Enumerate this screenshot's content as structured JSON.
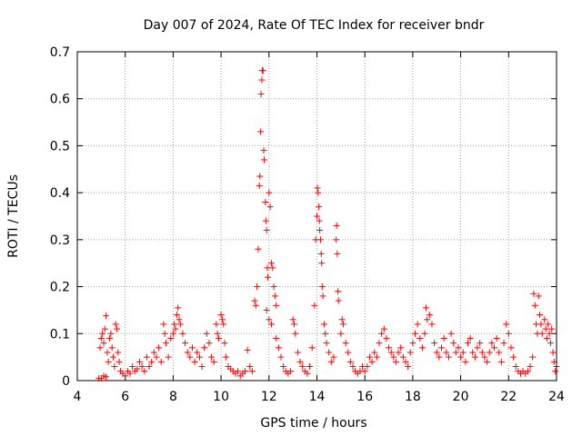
{
  "chart_data": {
    "type": "scatter",
    "title": "Day 007 of 2024, Rate Of TEC Index for receiver bndr",
    "xlabel": "GPS time / hours",
    "ylabel": "ROTI / TECUs",
    "xlim": [
      4,
      24
    ],
    "ylim": [
      0,
      0.7
    ],
    "grid": true,
    "marker": "plus",
    "color": "#ff0000",
    "x_ticks": [
      {
        "value": 4,
        "label": "4"
      },
      {
        "value": 6,
        "label": "6"
      },
      {
        "value": 8,
        "label": "8"
      },
      {
        "value": 10,
        "label": "10"
      },
      {
        "value": 12,
        "label": "12"
      },
      {
        "value": 14,
        "label": "14"
      },
      {
        "value": 16,
        "label": "16"
      },
      {
        "value": 18,
        "label": "18"
      },
      {
        "value": 20,
        "label": "20"
      },
      {
        "value": 22,
        "label": "22"
      },
      {
        "value": 24,
        "label": "24"
      }
    ],
    "y_ticks": [
      {
        "value": 0,
        "label": "0"
      },
      {
        "value": 0.1,
        "label": "0.1"
      },
      {
        "value": 0.2,
        "label": "0.2"
      },
      {
        "value": 0.3,
        "label": "0.3"
      },
      {
        "value": 0.4,
        "label": "0.4"
      },
      {
        "value": 0.5,
        "label": "0.5"
      },
      {
        "value": 0.6,
        "label": "0.6"
      },
      {
        "value": 0.7,
        "label": "0.7"
      }
    ],
    "series": [
      {
        "name": "ROTI",
        "points": [
          [
            4.9,
            0.005
          ],
          [
            4.95,
            0.07
          ],
          [
            5.0,
            0.09
          ],
          [
            5.05,
            0.1
          ],
          [
            5.1,
            0.08
          ],
          [
            5.15,
            0.11
          ],
          [
            5.2,
            0.138
          ],
          [
            5.25,
            0.06
          ],
          [
            5.3,
            0.04
          ],
          [
            5.35,
            0.09
          ],
          [
            5.4,
            0.1
          ],
          [
            5.45,
            0.07
          ],
          [
            5.5,
            0.05
          ],
          [
            5.55,
            0.03
          ],
          [
            5.6,
            0.12
          ],
          [
            5.65,
            0.11
          ],
          [
            5.7,
            0.06
          ],
          [
            5.75,
            0.04
          ],
          [
            5.8,
            0.02
          ],
          [
            5.9,
            0.015
          ],
          [
            5.0,
            0.005
          ],
          [
            5.1,
            0.01
          ],
          [
            5.2,
            0.008
          ],
          [
            6.0,
            0.01
          ],
          [
            6.1,
            0.02
          ],
          [
            6.2,
            0.015
          ],
          [
            6.3,
            0.03
          ],
          [
            6.4,
            0.02
          ],
          [
            6.5,
            0.025
          ],
          [
            6.6,
            0.04
          ],
          [
            6.7,
            0.03
          ],
          [
            6.8,
            0.02
          ],
          [
            6.9,
            0.05
          ],
          [
            7.0,
            0.03
          ],
          [
            7.1,
            0.04
          ],
          [
            7.2,
            0.06
          ],
          [
            7.3,
            0.05
          ],
          [
            7.4,
            0.07
          ],
          [
            7.5,
            0.04
          ],
          [
            7.6,
            0.12
          ],
          [
            7.65,
            0.1
          ],
          [
            7.7,
            0.08
          ],
          [
            7.8,
            0.05
          ],
          [
            7.9,
            0.09
          ],
          [
            8.0,
            0.1
          ],
          [
            8.05,
            0.12
          ],
          [
            8.1,
            0.11
          ],
          [
            8.15,
            0.14
          ],
          [
            8.2,
            0.155
          ],
          [
            8.25,
            0.13
          ],
          [
            8.3,
            0.12
          ],
          [
            8.4,
            0.1
          ],
          [
            8.5,
            0.08
          ],
          [
            8.6,
            0.06
          ],
          [
            8.7,
            0.05
          ],
          [
            8.8,
            0.07
          ],
          [
            8.9,
            0.04
          ],
          [
            9.0,
            0.06
          ],
          [
            9.1,
            0.05
          ],
          [
            9.2,
            0.03
          ],
          [
            9.3,
            0.07
          ],
          [
            9.4,
            0.1
          ],
          [
            9.5,
            0.08
          ],
          [
            9.6,
            0.05
          ],
          [
            9.7,
            0.04
          ],
          [
            9.8,
            0.12
          ],
          [
            9.85,
            0.1
          ],
          [
            9.9,
            0.09
          ],
          [
            10.0,
            0.14
          ],
          [
            10.05,
            0.13
          ],
          [
            10.1,
            0.12
          ],
          [
            10.15,
            0.08
          ],
          [
            10.2,
            0.05
          ],
          [
            10.3,
            0.03
          ],
          [
            10.4,
            0.025
          ],
          [
            10.5,
            0.02
          ],
          [
            10.6,
            0.015
          ],
          [
            10.7,
            0.02
          ],
          [
            10.8,
            0.01
          ],
          [
            10.9,
            0.015
          ],
          [
            11.0,
            0.02
          ],
          [
            11.1,
            0.065
          ],
          [
            11.2,
            0.03
          ],
          [
            11.3,
            0.02
          ],
          [
            11.4,
            0.17
          ],
          [
            11.45,
            0.16
          ],
          [
            11.5,
            0.2
          ],
          [
            11.55,
            0.28
          ],
          [
            11.6,
            0.415
          ],
          [
            11.62,
            0.435
          ],
          [
            11.65,
            0.53
          ],
          [
            11.67,
            0.61
          ],
          [
            11.7,
            0.64
          ],
          [
            11.72,
            0.66
          ],
          [
            11.75,
            0.66
          ],
          [
            11.78,
            0.49
          ],
          [
            11.8,
            0.47
          ],
          [
            11.85,
            0.38
          ],
          [
            11.87,
            0.34
          ],
          [
            11.9,
            0.32
          ],
          [
            11.93,
            0.24
          ],
          [
            11.95,
            0.22
          ],
          [
            12.0,
            0.4
          ],
          [
            12.05,
            0.37
          ],
          [
            12.1,
            0.25
          ],
          [
            12.15,
            0.24
          ],
          [
            12.2,
            0.2
          ],
          [
            12.25,
            0.18
          ],
          [
            12.3,
            0.16
          ],
          [
            11.9,
            0.15
          ],
          [
            12.0,
            0.13
          ],
          [
            12.1,
            0.12
          ],
          [
            12.3,
            0.09
          ],
          [
            12.4,
            0.07
          ],
          [
            12.5,
            0.05
          ],
          [
            12.6,
            0.03
          ],
          [
            12.7,
            0.02
          ],
          [
            12.8,
            0.015
          ],
          [
            12.9,
            0.02
          ],
          [
            13.0,
            0.13
          ],
          [
            13.05,
            0.12
          ],
          [
            13.1,
            0.1
          ],
          [
            13.2,
            0.06
          ],
          [
            13.3,
            0.04
          ],
          [
            13.4,
            0.03
          ],
          [
            13.5,
            0.02
          ],
          [
            13.6,
            0.015
          ],
          [
            13.7,
            0.03
          ],
          [
            13.8,
            0.07
          ],
          [
            13.9,
            0.16
          ],
          [
            13.95,
            0.3
          ],
          [
            14.0,
            0.35
          ],
          [
            14.02,
            0.41
          ],
          [
            14.05,
            0.4
          ],
          [
            14.08,
            0.37
          ],
          [
            14.1,
            0.34
          ],
          [
            14.12,
            0.32
          ],
          [
            14.15,
            0.3
          ],
          [
            14.18,
            0.27
          ],
          [
            14.2,
            0.25
          ],
          [
            14.22,
            0.2
          ],
          [
            14.25,
            0.18
          ],
          [
            14.3,
            0.12
          ],
          [
            14.35,
            0.1
          ],
          [
            14.4,
            0.08
          ],
          [
            14.5,
            0.06
          ],
          [
            14.6,
            0.04
          ],
          [
            14.7,
            0.05
          ],
          [
            14.8,
            0.3
          ],
          [
            14.82,
            0.33
          ],
          [
            14.85,
            0.27
          ],
          [
            14.88,
            0.19
          ],
          [
            14.9,
            0.17
          ],
          [
            15.0,
            0.1
          ],
          [
            15.05,
            0.13
          ],
          [
            15.1,
            0.12
          ],
          [
            15.2,
            0.08
          ],
          [
            15.3,
            0.06
          ],
          [
            15.4,
            0.04
          ],
          [
            15.5,
            0.03
          ],
          [
            15.6,
            0.02
          ],
          [
            15.7,
            0.015
          ],
          [
            15.8,
            0.02
          ],
          [
            15.9,
            0.03
          ],
          [
            16.0,
            0.02
          ],
          [
            16.1,
            0.03
          ],
          [
            16.2,
            0.05
          ],
          [
            16.3,
            0.04
          ],
          [
            16.4,
            0.06
          ],
          [
            16.5,
            0.05
          ],
          [
            16.6,
            0.08
          ],
          [
            16.7,
            0.1
          ],
          [
            16.8,
            0.11
          ],
          [
            16.9,
            0.09
          ],
          [
            17.0,
            0.07
          ],
          [
            17.1,
            0.06
          ],
          [
            17.2,
            0.05
          ],
          [
            17.3,
            0.04
          ],
          [
            17.4,
            0.06
          ],
          [
            17.5,
            0.07
          ],
          [
            17.6,
            0.05
          ],
          [
            17.7,
            0.04
          ],
          [
            17.8,
            0.03
          ],
          [
            17.9,
            0.06
          ],
          [
            18.0,
            0.08
          ],
          [
            18.1,
            0.1
          ],
          [
            18.2,
            0.12
          ],
          [
            18.3,
            0.09
          ],
          [
            18.4,
            0.07
          ],
          [
            18.5,
            0.1
          ],
          [
            18.55,
            0.155
          ],
          [
            18.6,
            0.13
          ],
          [
            18.7,
            0.14
          ],
          [
            18.8,
            0.12
          ],
          [
            18.9,
            0.08
          ],
          [
            19.0,
            0.06
          ],
          [
            19.1,
            0.05
          ],
          [
            19.2,
            0.07
          ],
          [
            19.3,
            0.09
          ],
          [
            19.4,
            0.06
          ],
          [
            19.5,
            0.05
          ],
          [
            19.6,
            0.1
          ],
          [
            19.7,
            0.08
          ],
          [
            19.8,
            0.06
          ],
          [
            19.9,
            0.07
          ],
          [
            20.0,
            0.05
          ],
          [
            20.1,
            0.06
          ],
          [
            20.2,
            0.04
          ],
          [
            20.3,
            0.08
          ],
          [
            20.4,
            0.09
          ],
          [
            20.5,
            0.06
          ],
          [
            20.6,
            0.05
          ],
          [
            20.7,
            0.07
          ],
          [
            20.8,
            0.08
          ],
          [
            20.9,
            0.06
          ],
          [
            21.0,
            0.05
          ],
          [
            21.1,
            0.04
          ],
          [
            21.2,
            0.06
          ],
          [
            21.3,
            0.08
          ],
          [
            21.4,
            0.07
          ],
          [
            21.5,
            0.09
          ],
          [
            21.6,
            0.06
          ],
          [
            21.7,
            0.04
          ],
          [
            21.8,
            0.08
          ],
          [
            21.9,
            0.12
          ],
          [
            22.0,
            0.1
          ],
          [
            22.1,
            0.07
          ],
          [
            22.2,
            0.05
          ],
          [
            22.3,
            0.03
          ],
          [
            22.4,
            0.02
          ],
          [
            22.5,
            0.015
          ],
          [
            22.6,
            0.02
          ],
          [
            22.7,
            0.015
          ],
          [
            22.8,
            0.02
          ],
          [
            22.9,
            0.03
          ],
          [
            23.0,
            0.05
          ],
          [
            23.05,
            0.185
          ],
          [
            23.1,
            0.16
          ],
          [
            23.15,
            0.12
          ],
          [
            23.2,
            0.1
          ],
          [
            23.25,
            0.18
          ],
          [
            23.3,
            0.14
          ],
          [
            23.35,
            0.12
          ],
          [
            23.4,
            0.1
          ],
          [
            23.5,
            0.13
          ],
          [
            23.55,
            0.11
          ],
          [
            23.6,
            0.09
          ],
          [
            23.65,
            0.12
          ],
          [
            23.7,
            0.1
          ],
          [
            23.75,
            0.08
          ],
          [
            23.8,
            0.11
          ],
          [
            23.85,
            0.06
          ],
          [
            23.9,
            0.04
          ],
          [
            23.95,
            0.02
          ],
          [
            24.0,
            0.03
          ]
        ]
      }
    ]
  }
}
